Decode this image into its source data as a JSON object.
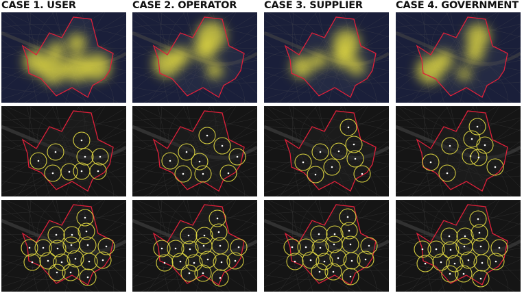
{
  "cases": [
    {
      "title": "CASE 1. USER"
    },
    {
      "title": "CASE 2. OPERATOR"
    },
    {
      "title": "CASE 3. SUPPLIER"
    },
    {
      "title": "CASE 4. GOVERNMENT"
    }
  ],
  "rows": [
    "heatmap",
    "initial-stations",
    "expanded-stations"
  ],
  "colors": {
    "boundary": "#e0203a",
    "heat": "#e8e040",
    "heatmap_background": "#1a1f3a",
    "station_circle": "#d8d040",
    "station_point": "#ffffff",
    "map_background": "#151515"
  }
}
